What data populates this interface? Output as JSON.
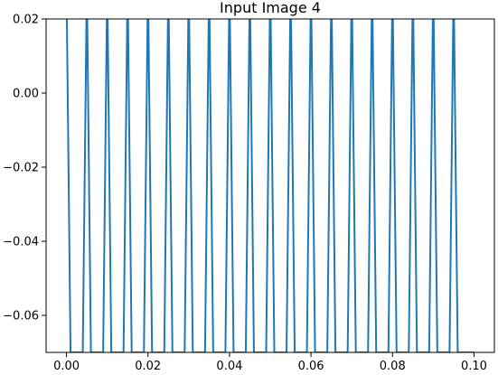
{
  "chart_data": {
    "type": "line",
    "title": "Input Image 4",
    "xlabel": "",
    "ylabel": "",
    "xlim": [
      -0.005,
      0.105
    ],
    "ylim": [
      -0.07,
      0.02
    ],
    "xticks": [
      0.0,
      0.02,
      0.04,
      0.06,
      0.08,
      0.1
    ],
    "xtick_labels": [
      "0.00",
      "0.02",
      "0.04",
      "0.06",
      "0.08",
      "0.10"
    ],
    "yticks": [
      0.02,
      0.0,
      -0.02,
      -0.04,
      -0.06
    ],
    "ytick_labels": [
      "0.02",
      "0.00",
      "−0.02",
      "−0.04",
      "−0.06"
    ],
    "grid": false,
    "legend": "none",
    "series": [
      {
        "color": "#1f77b4",
        "x": [
          0.0,
          0.001,
          0.002,
          0.003,
          0.004,
          0.005,
          0.006,
          0.007,
          0.008,
          0.009,
          0.01,
          0.011,
          0.012,
          0.013,
          0.014,
          0.015,
          0.016,
          0.017,
          0.018,
          0.019,
          0.02,
          0.021,
          0.022,
          0.023,
          0.024,
          0.025,
          0.026,
          0.027,
          0.028,
          0.029,
          0.03,
          0.031,
          0.032,
          0.033,
          0.034,
          0.035,
          0.036,
          0.037,
          0.038,
          0.039,
          0.04,
          0.041,
          0.042,
          0.043,
          0.044,
          0.045,
          0.046,
          0.047,
          0.048,
          0.049,
          0.05,
          0.051,
          0.052,
          0.053,
          0.054,
          0.055,
          0.056,
          0.057,
          0.058,
          0.059,
          0.06,
          0.061,
          0.062,
          0.063,
          0.064,
          0.065,
          0.066,
          0.067,
          0.068,
          0.069,
          0.07,
          0.071,
          0.072,
          0.073,
          0.074,
          0.075,
          0.076,
          0.077,
          0.078,
          0.079,
          0.08,
          0.081,
          0.082,
          0.083,
          0.084,
          0.085,
          0.086,
          0.087,
          0.088,
          0.089,
          0.09,
          0.091,
          0.092,
          0.093,
          0.094,
          0.095,
          0.096,
          0.097,
          0.098,
          0.099,
          0.1
        ],
        "y": [
          0.03,
          -0.07,
          -0.07,
          -0.07,
          -0.07,
          0.03,
          -0.07,
          -0.07,
          -0.07,
          -0.07,
          0.03,
          -0.07,
          -0.07,
          -0.07,
          -0.07,
          0.03,
          -0.07,
          -0.07,
          -0.07,
          -0.07,
          0.03,
          -0.07,
          -0.07,
          -0.07,
          -0.07,
          0.03,
          -0.07,
          -0.07,
          -0.07,
          -0.07,
          0.03,
          -0.07,
          -0.07,
          -0.07,
          -0.07,
          0.03,
          -0.07,
          -0.07,
          -0.07,
          -0.07,
          0.03,
          -0.07,
          -0.07,
          -0.07,
          -0.07,
          0.03,
          -0.07,
          -0.07,
          -0.07,
          -0.07,
          0.03,
          -0.07,
          -0.07,
          -0.07,
          -0.07,
          0.03,
          -0.07,
          -0.07,
          -0.07,
          -0.07,
          0.03,
          -0.07,
          -0.07,
          -0.07,
          -0.07,
          0.03,
          -0.07,
          -0.07,
          -0.07,
          -0.07,
          0.03,
          -0.07,
          -0.07,
          -0.07,
          -0.07,
          0.03,
          -0.07,
          -0.07,
          -0.07,
          -0.07,
          0.03,
          -0.07,
          -0.07,
          -0.07,
          -0.07,
          0.03,
          -0.07,
          -0.07,
          -0.07,
          -0.07,
          0.03,
          -0.07,
          -0.07,
          -0.07,
          -0.07,
          0.03,
          -0.07,
          -0.07,
          -0.07,
          -0.07,
          -0.07
        ]
      }
    ]
  }
}
